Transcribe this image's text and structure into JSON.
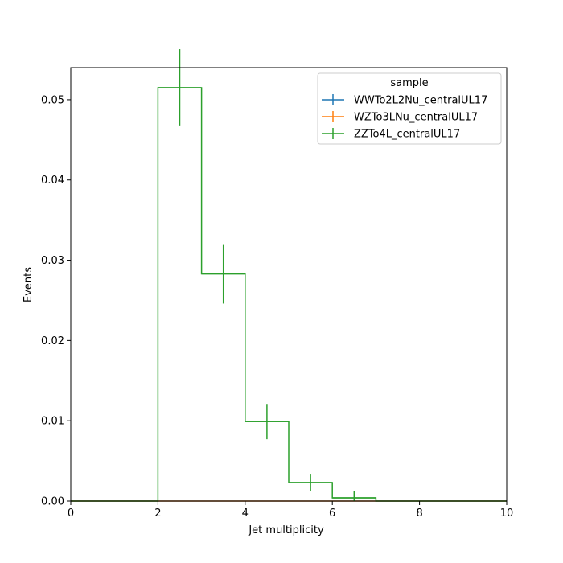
{
  "chart_data": {
    "type": "histogram",
    "xlabel": "Jet multiplicity",
    "ylabel": "Events",
    "xlim": [
      0,
      10
    ],
    "ylim": [
      0,
      0.054
    ],
    "x_ticks": [
      0,
      2,
      4,
      6,
      8,
      10
    ],
    "x_tick_labels": [
      "0",
      "2",
      "4",
      "6",
      "8",
      "10"
    ],
    "y_ticks": [
      0,
      0.01,
      0.02,
      0.03,
      0.04,
      0.05
    ],
    "y_tick_labels": [
      "0.00",
      "0.01",
      "0.02",
      "0.03",
      "0.04",
      "0.05"
    ],
    "grid": false,
    "legend": {
      "title": "sample",
      "placement": "upper right"
    },
    "bin_edges": [
      0,
      1,
      2,
      3,
      4,
      5,
      6,
      7,
      8,
      9,
      10
    ],
    "series": [
      {
        "name": "WWTo2L2Nu_centralUL17",
        "color": "#1f77b4",
        "values": [
          0,
          0,
          0,
          0,
          0,
          0,
          0,
          0,
          0,
          0
        ],
        "errors": [
          0,
          0,
          0,
          0,
          0,
          0,
          0,
          0,
          0,
          0
        ]
      },
      {
        "name": "WZTo3LNu_centralUL17",
        "color": "#ff7f0e",
        "values": [
          0,
          0,
          0,
          0,
          0,
          0,
          0,
          0,
          0,
          0
        ],
        "errors": [
          0,
          0,
          0,
          0,
          0,
          0,
          0,
          0,
          0,
          0
        ]
      },
      {
        "name": "ZZTo4L_centralUL17",
        "color": "#2ca02c",
        "values": [
          0,
          0,
          0.0515,
          0.0283,
          0.0099,
          0.0023,
          0.0004,
          0,
          0,
          0
        ],
        "errors": [
          0,
          0,
          0.0048,
          0.0037,
          0.0022,
          0.0011,
          0.0009,
          0,
          0,
          0
        ]
      }
    ]
  }
}
